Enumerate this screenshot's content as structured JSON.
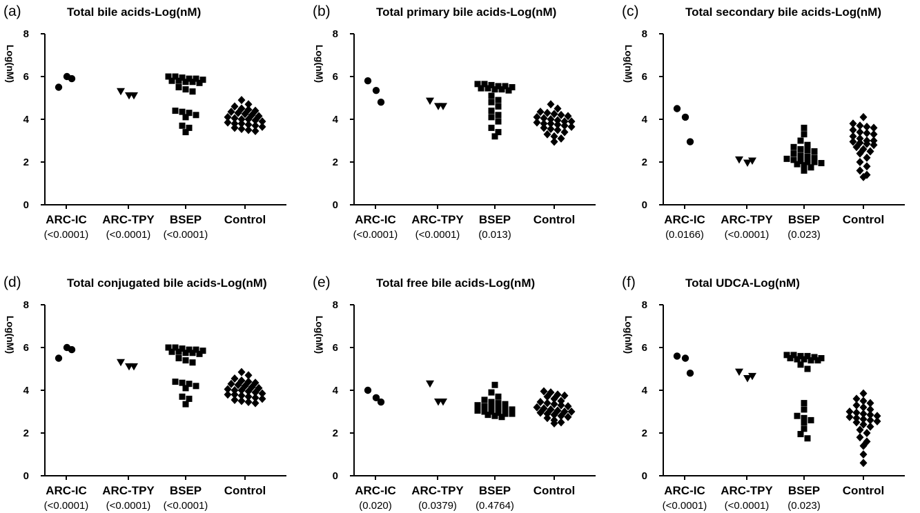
{
  "chart_data": [
    {
      "type": "scatter",
      "panel": "(a)",
      "title": "Total bile acids-Log(nM)",
      "ylabel": "Log(nM)",
      "ylim": [
        0,
        8
      ],
      "yticks": [
        0,
        2,
        4,
        6,
        8
      ],
      "categories": [
        "ARC-IC",
        "ARC-TPY",
        "BSEP",
        "Control"
      ],
      "pvalues": [
        "(<0.0001)",
        "(<0.0001)",
        "(<0.0001)",
        ""
      ],
      "series": [
        {
          "values": [
            5.5,
            6.0,
            5.9
          ]
        },
        {
          "values": [
            5.3,
            5.1,
            5.1
          ]
        },
        {
          "values": [
            6.0,
            5.95,
            5.9,
            5.85,
            5.8,
            5.75,
            5.7,
            5.75,
            5.8,
            5.9,
            6.0,
            5.5,
            5.4,
            5.3,
            4.4,
            4.35,
            4.3,
            4.2,
            4.1,
            3.7,
            3.6,
            3.4
          ]
        },
        {
          "values": [
            4.9,
            4.7,
            4.6,
            4.5,
            4.45,
            4.4,
            4.35,
            4.3,
            4.25,
            4.2,
            4.15,
            4.1,
            4.05,
            4.0,
            4.0,
            3.95,
            3.9,
            3.85,
            3.8,
            3.8,
            3.75,
            3.7,
            3.65,
            3.6,
            3.55,
            3.5,
            3.45
          ]
        }
      ]
    },
    {
      "type": "scatter",
      "panel": "(b)",
      "title": "Total primary bile acids-Log(nM)",
      "ylabel": "Log(nM)",
      "ylim": [
        0,
        8
      ],
      "yticks": [
        0,
        2,
        4,
        6,
        8
      ],
      "categories": [
        "ARC-IC",
        "ARC-TPY",
        "BSEP",
        "Control"
      ],
      "pvalues": [
        "(<0.0001)",
        "(<0.0001)",
        "(0.013)",
        ""
      ],
      "series": [
        {
          "values": [
            5.8,
            5.35,
            4.8
          ]
        },
        {
          "values": [
            4.85,
            4.6,
            4.6
          ]
        },
        {
          "values": [
            5.65,
            5.6,
            5.55,
            5.5,
            5.45,
            5.4,
            5.35,
            5.4,
            5.45,
            5.55,
            5.65,
            5.1,
            4.9,
            4.8,
            4.6,
            4.4,
            4.2,
            4.1,
            3.9,
            3.6,
            3.4,
            3.2
          ]
        },
        {
          "values": [
            4.7,
            4.5,
            4.35,
            4.3,
            4.25,
            4.2,
            4.15,
            4.1,
            4.05,
            4.0,
            3.95,
            3.9,
            3.9,
            3.85,
            3.8,
            3.8,
            3.75,
            3.7,
            3.65,
            3.6,
            3.55,
            3.5,
            3.4,
            3.3,
            3.2,
            3.1,
            2.95
          ]
        }
      ]
    },
    {
      "type": "scatter",
      "panel": "(c)",
      "title": "Total secondary bile acids-Log(nM)",
      "ylabel": "Log(nM)",
      "ylim": [
        0,
        8
      ],
      "yticks": [
        0,
        2,
        4,
        6,
        8
      ],
      "categories": [
        "ARC-IC",
        "ARC-TPY",
        "BSEP",
        "Control"
      ],
      "pvalues": [
        "(0.0166)",
        "(<0.0001)",
        "(0.023)",
        ""
      ],
      "series": [
        {
          "values": [
            4.5,
            4.1,
            2.95
          ]
        },
        {
          "values": [
            2.1,
            1.95,
            2.05
          ]
        },
        {
          "values": [
            3.6,
            3.3,
            3.0,
            2.8,
            2.7,
            2.6,
            2.55,
            2.5,
            2.4,
            2.3,
            2.25,
            2.2,
            2.15,
            2.1,
            2.05,
            2.0,
            2.0,
            1.95,
            1.9,
            1.85,
            1.75,
            1.6
          ]
        },
        {
          "values": [
            4.1,
            3.8,
            3.7,
            3.65,
            3.6,
            3.5,
            3.4,
            3.35,
            3.3,
            3.2,
            3.1,
            3.0,
            3.0,
            2.95,
            2.9,
            2.85,
            2.8,
            2.7,
            2.6,
            2.5,
            2.4,
            2.2,
            2.0,
            1.8,
            1.6,
            1.4,
            1.3
          ]
        }
      ]
    },
    {
      "type": "scatter",
      "panel": "(d)",
      "title": "Total conjugated bile acids-Log(nM)",
      "ylabel": "Log(nM)",
      "ylim": [
        0,
        8
      ],
      "yticks": [
        0,
        2,
        4,
        6,
        8
      ],
      "categories": [
        "ARC-IC",
        "ARC-TPY",
        "BSEP",
        "Control"
      ],
      "pvalues": [
        "(<0.0001)",
        "(<0.0001)",
        "(<0.0001)",
        ""
      ],
      "series": [
        {
          "values": [
            5.5,
            6.0,
            5.9
          ]
        },
        {
          "values": [
            5.3,
            5.1,
            5.1
          ]
        },
        {
          "values": [
            6.0,
            5.95,
            5.9,
            5.85,
            5.8,
            5.75,
            5.7,
            5.75,
            5.8,
            5.9,
            6.0,
            5.5,
            5.4,
            5.3,
            4.4,
            4.35,
            4.3,
            4.2,
            4.1,
            3.7,
            3.6,
            3.35
          ]
        },
        {
          "values": [
            4.85,
            4.7,
            4.55,
            4.45,
            4.4,
            4.35,
            4.3,
            4.25,
            4.2,
            4.15,
            4.1,
            4.05,
            4.0,
            4.0,
            3.95,
            3.9,
            3.85,
            3.8,
            3.8,
            3.75,
            3.7,
            3.65,
            3.6,
            3.55,
            3.5,
            3.45,
            3.4
          ]
        }
      ]
    },
    {
      "type": "scatter",
      "panel": "(e)",
      "title": "Total free bile acids-Log(nM)",
      "ylabel": "Log(nM)",
      "ylim": [
        0,
        8
      ],
      "yticks": [
        0,
        2,
        4,
        6,
        8
      ],
      "categories": [
        "ARC-IC",
        "ARC-TPY",
        "BSEP",
        "Control"
      ],
      "pvalues": [
        "(0.020)",
        "(0.0379)",
        "(0.4764)",
        ""
      ],
      "series": [
        {
          "values": [
            4.0,
            3.65,
            3.45
          ]
        },
        {
          "values": [
            4.3,
            3.45,
            3.45
          ]
        },
        {
          "values": [
            4.25,
            3.9,
            3.7,
            3.55,
            3.45,
            3.4,
            3.35,
            3.3,
            3.25,
            3.2,
            3.15,
            3.1,
            3.1,
            3.05,
            3.0,
            3.0,
            2.95,
            2.9,
            2.9,
            2.85,
            2.8,
            2.75
          ]
        },
        {
          "values": [
            3.95,
            3.9,
            3.8,
            3.75,
            3.7,
            3.6,
            3.5,
            3.45,
            3.4,
            3.35,
            3.3,
            3.25,
            3.2,
            3.15,
            3.1,
            3.05,
            3.0,
            3.0,
            2.95,
            2.9,
            2.85,
            2.8,
            2.75,
            2.7,
            2.6,
            2.5,
            2.45
          ]
        }
      ]
    },
    {
      "type": "scatter",
      "panel": "(f)",
      "title": "Total UDCA-Log(nM)",
      "ylabel": "Log(nM)",
      "ylim": [
        0,
        8
      ],
      "yticks": [
        0,
        2,
        4,
        6,
        8
      ],
      "categories": [
        "ARC-IC",
        "ARC-TPY",
        "BSEP",
        "Control"
      ],
      "pvalues": [
        "(<0.0001)",
        "(<0.0001)",
        "(0.023)",
        ""
      ],
      "series": [
        {
          "values": [
            5.6,
            5.5,
            4.8
          ]
        },
        {
          "values": [
            4.85,
            4.55,
            4.65
          ]
        },
        {
          "values": [
            5.65,
            5.6,
            5.55,
            5.5,
            5.45,
            5.4,
            5.4,
            5.45,
            5.5,
            5.6,
            5.65,
            5.2,
            5.0,
            3.4,
            3.1,
            2.8,
            2.7,
            2.6,
            2.5,
            2.2,
            1.95,
            1.75
          ]
        },
        {
          "values": [
            3.85,
            3.6,
            3.5,
            3.4,
            3.3,
            3.2,
            3.1,
            3.0,
            2.95,
            2.9,
            2.85,
            2.8,
            2.75,
            2.7,
            2.65,
            2.6,
            2.55,
            2.5,
            2.4,
            2.3,
            2.15,
            2.0,
            1.8,
            1.6,
            1.4,
            1.0,
            0.6
          ]
        }
      ]
    }
  ],
  "marker_color": "#000000",
  "marker_shapes": [
    "circle",
    "triangle-down",
    "square",
    "diamond"
  ]
}
